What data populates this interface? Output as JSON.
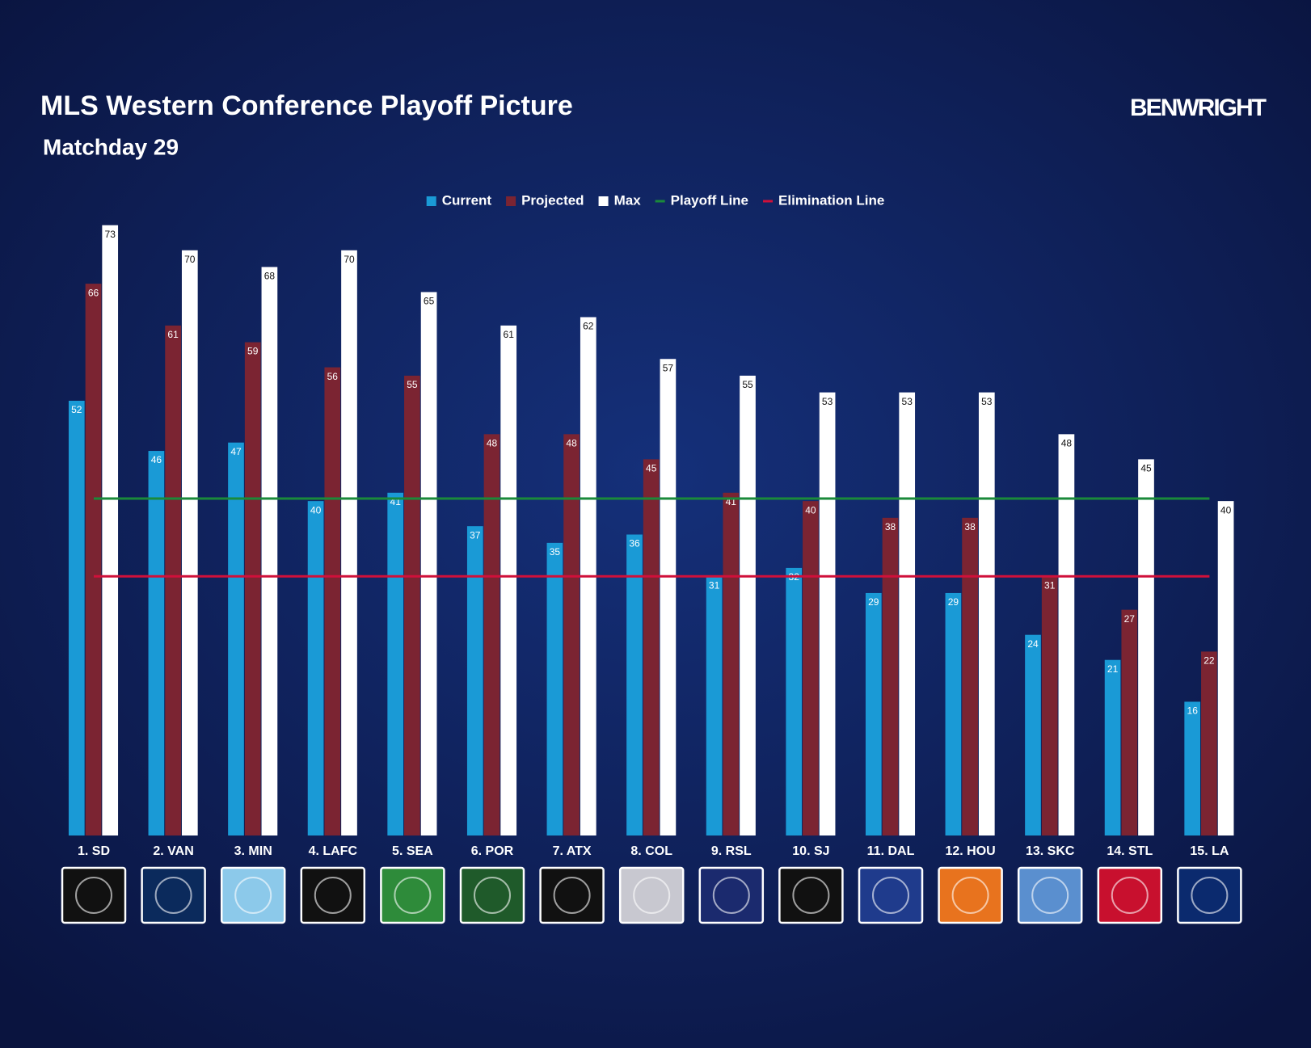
{
  "chart_data": {
    "type": "bar",
    "title": "MLS Western Conference Playoff Picture",
    "subtitle": "Matchday 29",
    "brand": "BENWRIGHT",
    "categories": [
      "1. SD",
      "2. VAN",
      "3. MIN",
      "4. LAFC",
      "5. SEA",
      "6. POR",
      "7. ATX",
      "8. COL",
      "9. RSL",
      "10. SJ",
      "11. DAL",
      "12. HOU",
      "13. SKC",
      "14. STL",
      "15. LA"
    ],
    "series": [
      {
        "name": "Current",
        "color": "#1a9ad6",
        "values": [
          52,
          46,
          47,
          40,
          41,
          37,
          35,
          36,
          31,
          32,
          29,
          29,
          24,
          21,
          16
        ]
      },
      {
        "name": "Projected",
        "color": "#7b2432",
        "values": [
          66,
          61,
          59,
          56,
          55,
          48,
          48,
          45,
          41,
          40,
          38,
          38,
          31,
          27,
          22
        ]
      },
      {
        "name": "Max",
        "color": "#ffffff",
        "values": [
          73,
          70,
          68,
          70,
          65,
          61,
          62,
          57,
          55,
          53,
          53,
          53,
          48,
          45,
          40
        ]
      }
    ],
    "lines": [
      {
        "name": "Playoff Line",
        "color": "#1a8a3a",
        "value": 40.3
      },
      {
        "name": "Elimination Line",
        "color": "#d0103a",
        "value": 31
      }
    ],
    "ylim": [
      0,
      75
    ],
    "legend": "top"
  }
}
